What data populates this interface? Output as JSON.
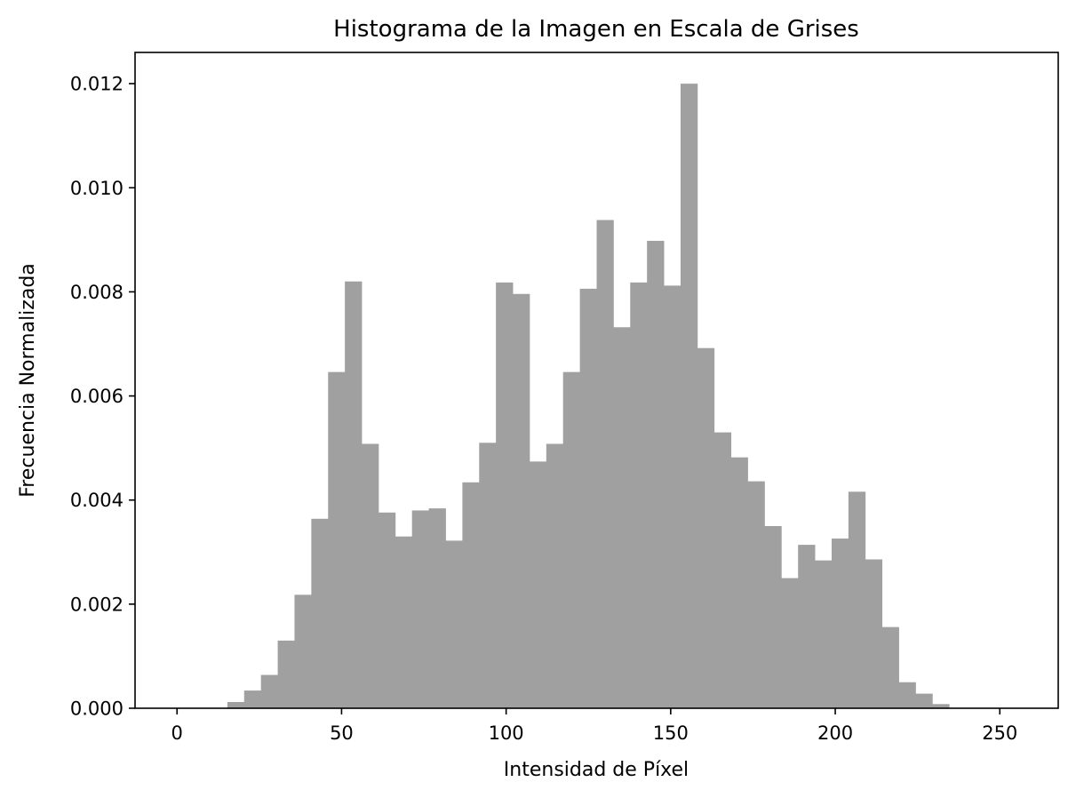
{
  "chart_data": {
    "type": "bar",
    "title": "Histograma de la Imagen en Escala de Grises",
    "xlabel": "Intensidad de Píxel",
    "ylabel": "Frecuencia Normalizada",
    "xlim": [
      -12.75,
      267.75
    ],
    "ylim": [
      0,
      0.0126
    ],
    "xticks": [
      0,
      50,
      100,
      150,
      200,
      250
    ],
    "xtick_labels": [
      "0",
      "50",
      "100",
      "150",
      "200",
      "250"
    ],
    "yticks": [
      0,
      0.002,
      0.004,
      0.006,
      0.008,
      0.01,
      0.012
    ],
    "ytick_labels": [
      "0.000",
      "0.002",
      "0.004",
      "0.006",
      "0.008",
      "0.010",
      "0.012"
    ],
    "bin_start": 0,
    "bin_width": 5.1,
    "bar_color": "#a0a0a0",
    "grid": false,
    "legend": false,
    "values": [
      0,
      0,
      0,
      0.00012,
      0.00034,
      0.00064,
      0.0013,
      0.00218,
      0.00364,
      0.00646,
      0.0082,
      0.00508,
      0.00376,
      0.0033,
      0.0038,
      0.00384,
      0.00322,
      0.00434,
      0.0051,
      0.00818,
      0.00796,
      0.00474,
      0.00508,
      0.00646,
      0.00806,
      0.00938,
      0.00732,
      0.00818,
      0.00898,
      0.00812,
      0.012,
      0.00692,
      0.0053,
      0.00482,
      0.00436,
      0.0035,
      0.0025,
      0.00314,
      0.00284,
      0.00326,
      0.00416,
      0.00286,
      0.00156,
      0.0005,
      0.00028,
      8e-05,
      0,
      0,
      0,
      0
    ]
  }
}
